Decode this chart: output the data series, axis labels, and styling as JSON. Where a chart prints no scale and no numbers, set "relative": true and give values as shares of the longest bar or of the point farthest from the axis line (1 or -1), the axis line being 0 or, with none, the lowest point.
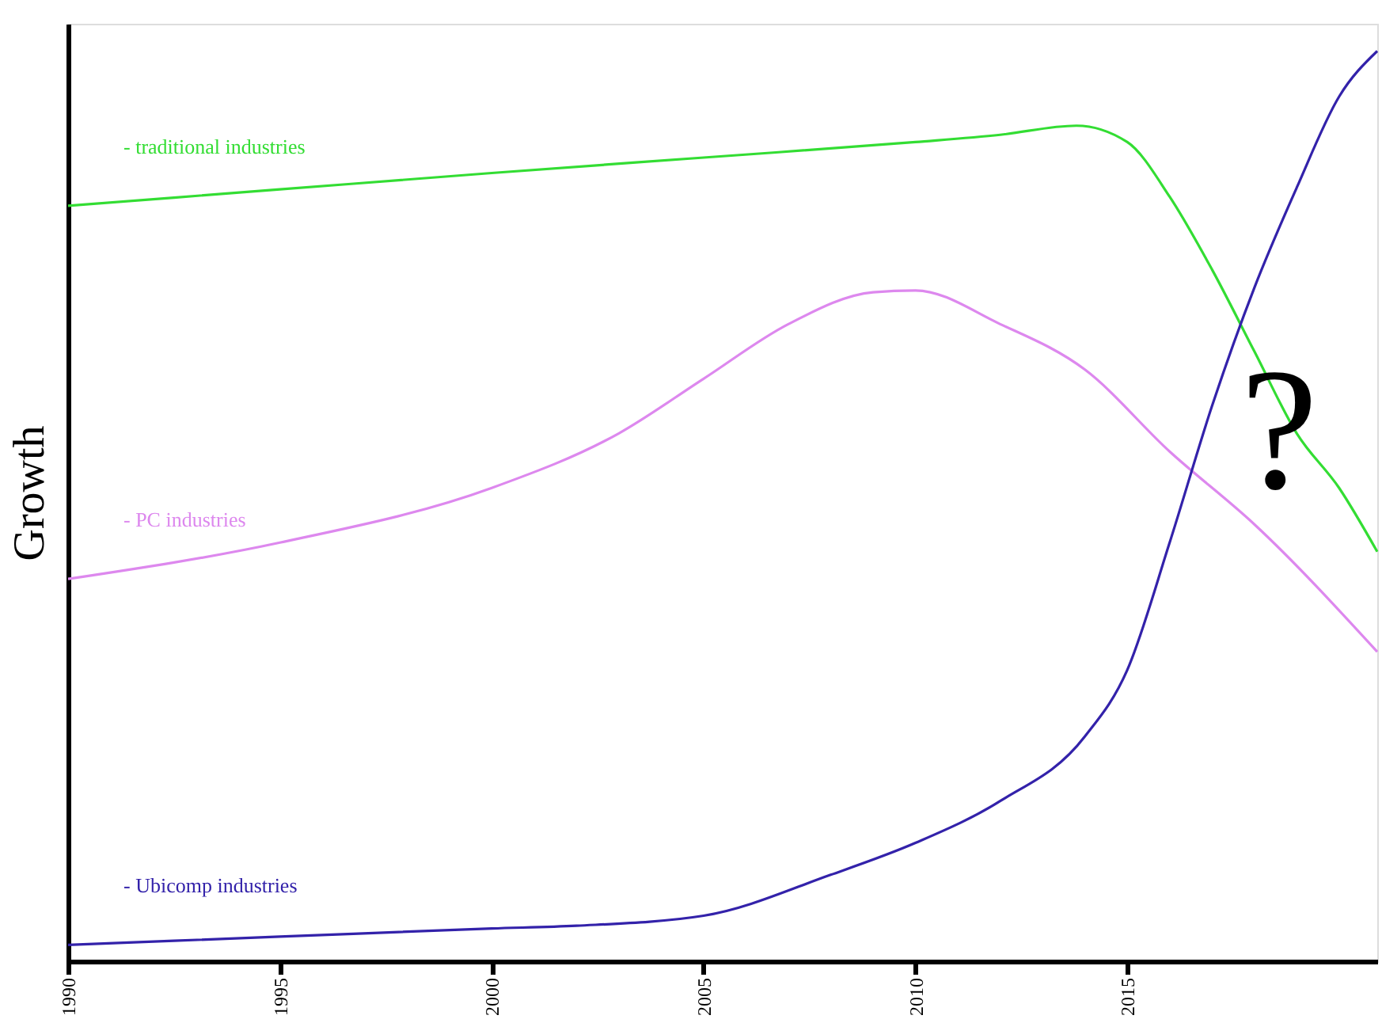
{
  "chart_data": {
    "type": "line",
    "relative": true,
    "ylabel": "Growth",
    "xlim": [
      1990,
      2020.9
    ],
    "xticks": [
      1990,
      1995,
      2000,
      2005,
      2010,
      2015
    ],
    "annotations": [
      "?"
    ],
    "legend": false,
    "grid": false,
    "marker": "none",
    "line_style": "solid",
    "series": [
      {
        "name": "- traditional industries",
        "color": "#33dd33",
        "x": [
          1990,
          1995,
          2000,
          2005,
          2010,
          2012,
          2013.8,
          2015,
          2016,
          2017,
          2018,
          2019,
          2020,
          2020.9
        ],
        "values": [
          0.83,
          0.848,
          0.866,
          0.883,
          0.9,
          0.908,
          0.918,
          0.9,
          0.84,
          0.76,
          0.67,
          0.58,
          0.52,
          0.45
        ]
      },
      {
        "name": "- PC industries",
        "color": "#dd88ee",
        "x": [
          1990,
          1995,
          2000,
          2003,
          2005,
          2007,
          2009,
          2010,
          2012,
          2014,
          2016,
          2018,
          2020.9
        ],
        "values": [
          0.42,
          0.46,
          0.52,
          0.58,
          0.64,
          0.7,
          0.735,
          0.737,
          0.7,
          0.65,
          0.56,
          0.48,
          0.34
        ]
      },
      {
        "name": "- Ubicomp industries",
        "color": "#3322aa",
        "x": [
          1990,
          1995,
          2000,
          2002,
          2005,
          2008,
          2010,
          2012,
          2014,
          2015,
          2016,
          2017,
          2018,
          2019,
          2020,
          2020.9
        ],
        "values": [
          0.018,
          0.027,
          0.036,
          0.039,
          0.05,
          0.095,
          0.13,
          0.176,
          0.247,
          0.32,
          0.46,
          0.61,
          0.74,
          0.85,
          0.95,
          1.0
        ]
      }
    ]
  }
}
